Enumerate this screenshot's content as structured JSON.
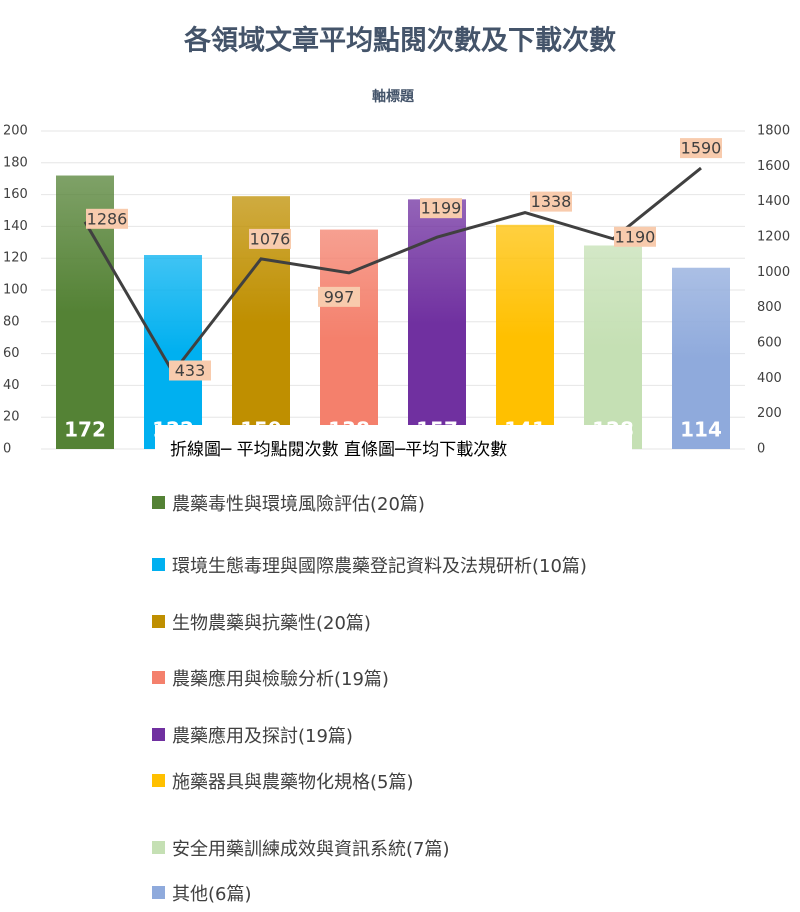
{
  "chart_data": {
    "type": "bar-line",
    "title": "各領域文章平均點閱次數及下載次數",
    "y_axis_title": "軸標題",
    "annotation": "折線圖─ 平均點閱次數  直條圖─平均下載次數",
    "categories": [
      "農藥毒性與環境風險評估(20篇)",
      "環境生態毒理與國際農藥登記資料及法規研析(10篇)",
      "生物農藥與抗藥性(20篇)",
      "農藥應用與檢驗分析(19篇)",
      "農藥應用及探討(19篇)",
      "施藥器具與農藥物化規格(5篇)",
      "安全用藥訓練成效與資訊系統(7篇)",
      "其他(6篇)"
    ],
    "colors": [
      "#548235",
      "#00b0f0",
      "#bf8f00",
      "#f4806c",
      "#7030a0",
      "#ffc000",
      "#c5e0b4",
      "#8faadc"
    ],
    "series": [
      {
        "type": "bar",
        "values": [
          172,
          122,
          159,
          138,
          157,
          141,
          128,
          114
        ]
      },
      {
        "type": "line",
        "axis": "y2",
        "color": "#404040",
        "values": [
          1286,
          433,
          1076,
          997,
          1199,
          1338,
          1190,
          1590
        ]
      }
    ],
    "ylim": [
      0,
      200
    ],
    "yticks": [
      0,
      20,
      40,
      60,
      80,
      100,
      120,
      140,
      160,
      180,
      200
    ],
    "y2lim": [
      0,
      1800
    ],
    "y2ticks": [
      0,
      200,
      400,
      600,
      800,
      1000,
      1200,
      1400,
      1600,
      1800
    ],
    "grid": true,
    "legend": "bottom"
  }
}
